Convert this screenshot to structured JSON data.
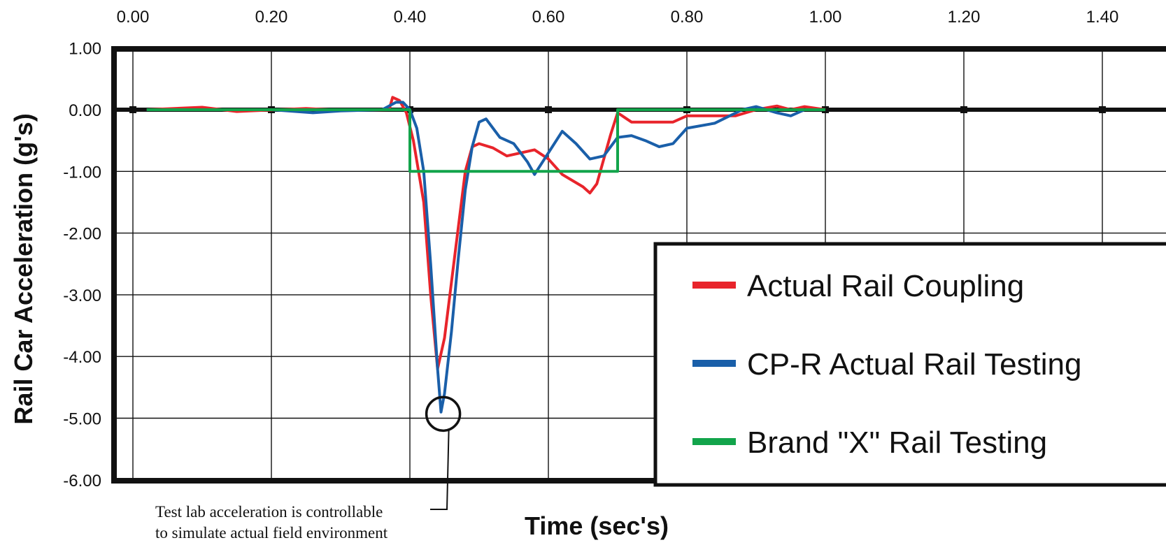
{
  "chart_data": {
    "type": "line",
    "title": "",
    "xlabel": "Time (sec's)",
    "ylabel": "Rail Car Acceleration (g's)",
    "xlim": [
      0.0,
      1.4
    ],
    "ylim": [
      -6.0,
      1.0
    ],
    "x_ticks": [
      "0.00",
      "0.20",
      "0.40",
      "0.60",
      "0.80",
      "1.00",
      "1.20",
      "1.40"
    ],
    "y_ticks": [
      "1.00",
      "0.00",
      "-1.00",
      "-2.00",
      "-3.00",
      "-4.00",
      "-5.00",
      "-6.00"
    ],
    "x_axis_position": "top",
    "grid": true,
    "legend_position": "bottom-right",
    "series": [
      {
        "name": "Actual Rail Coupling",
        "color": "#e8242b",
        "points": [
          [
            0.02,
            0.0
          ],
          [
            0.1,
            0.04
          ],
          [
            0.15,
            -0.03
          ],
          [
            0.25,
            0.02
          ],
          [
            0.3,
            -0.01
          ],
          [
            0.37,
            0.0
          ],
          [
            0.375,
            0.2
          ],
          [
            0.385,
            0.15
          ],
          [
            0.395,
            -0.05
          ],
          [
            0.405,
            -0.5
          ],
          [
            0.42,
            -1.5
          ],
          [
            0.43,
            -3.0
          ],
          [
            0.44,
            -4.2
          ],
          [
            0.45,
            -3.7
          ],
          [
            0.46,
            -2.8
          ],
          [
            0.47,
            -1.9
          ],
          [
            0.48,
            -1.0
          ],
          [
            0.49,
            -0.6
          ],
          [
            0.5,
            -0.55
          ],
          [
            0.52,
            -0.62
          ],
          [
            0.54,
            -0.75
          ],
          [
            0.56,
            -0.7
          ],
          [
            0.58,
            -0.65
          ],
          [
            0.6,
            -0.8
          ],
          [
            0.62,
            -1.05
          ],
          [
            0.65,
            -1.25
          ],
          [
            0.66,
            -1.35
          ],
          [
            0.67,
            -1.2
          ],
          [
            0.69,
            -0.4
          ],
          [
            0.7,
            -0.05
          ],
          [
            0.72,
            -0.2
          ],
          [
            0.78,
            -0.2
          ],
          [
            0.8,
            -0.1
          ],
          [
            0.87,
            -0.1
          ],
          [
            0.9,
            0.0
          ],
          [
            0.93,
            0.06
          ],
          [
            0.95,
            0.0
          ],
          [
            0.97,
            0.05
          ],
          [
            1.0,
            0.0
          ]
        ]
      },
      {
        "name": "CP-R Actual Rail Testing",
        "color": "#1a5fa9",
        "points": [
          [
            0.02,
            0.0
          ],
          [
            0.2,
            0.0
          ],
          [
            0.26,
            -0.05
          ],
          [
            0.3,
            -0.02
          ],
          [
            0.36,
            0.0
          ],
          [
            0.38,
            0.12
          ],
          [
            0.39,
            0.12
          ],
          [
            0.4,
            0.0
          ],
          [
            0.41,
            -0.3
          ],
          [
            0.42,
            -1.0
          ],
          [
            0.43,
            -2.5
          ],
          [
            0.44,
            -4.2
          ],
          [
            0.445,
            -4.9
          ],
          [
            0.45,
            -4.6
          ],
          [
            0.46,
            -3.6
          ],
          [
            0.47,
            -2.4
          ],
          [
            0.48,
            -1.3
          ],
          [
            0.49,
            -0.6
          ],
          [
            0.5,
            -0.2
          ],
          [
            0.51,
            -0.15
          ],
          [
            0.53,
            -0.45
          ],
          [
            0.55,
            -0.55
          ],
          [
            0.57,
            -0.85
          ],
          [
            0.58,
            -1.05
          ],
          [
            0.6,
            -0.7
          ],
          [
            0.62,
            -0.35
          ],
          [
            0.64,
            -0.55
          ],
          [
            0.66,
            -0.8
          ],
          [
            0.68,
            -0.75
          ],
          [
            0.7,
            -0.45
          ],
          [
            0.72,
            -0.42
          ],
          [
            0.74,
            -0.5
          ],
          [
            0.76,
            -0.6
          ],
          [
            0.78,
            -0.55
          ],
          [
            0.8,
            -0.3
          ],
          [
            0.84,
            -0.22
          ],
          [
            0.88,
            0.0
          ],
          [
            0.9,
            0.05
          ],
          [
            0.93,
            -0.05
          ],
          [
            0.95,
            -0.1
          ],
          [
            0.97,
            0.0
          ],
          [
            1.0,
            0.0
          ]
        ]
      },
      {
        "name": "Brand \"X\" Rail Testing",
        "color": "#12a44b",
        "points": [
          [
            0.02,
            0.0
          ],
          [
            0.4,
            0.0
          ],
          [
            0.4,
            -1.0
          ],
          [
            0.7,
            -1.0
          ],
          [
            0.7,
            0.0
          ],
          [
            1.0,
            0.0
          ]
        ]
      }
    ],
    "annotation": {
      "lines": [
        "Test lab acceleration is controllable",
        "to simulate actual field environment"
      ],
      "target": [
        0.44,
        -4.93
      ]
    }
  }
}
